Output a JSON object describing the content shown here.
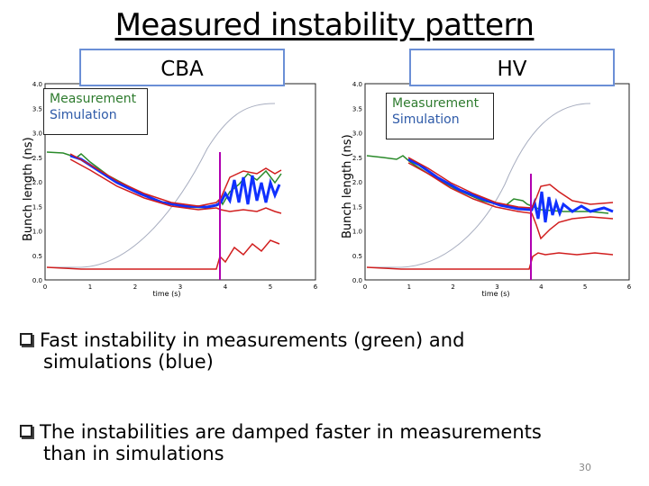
{
  "slide": {
    "title": "Measured instability pattern",
    "page_number": "30"
  },
  "panels": [
    {
      "tag": "CBA",
      "ylabel": "Bunch length (ns)",
      "legend": {
        "measurement": "Measurement",
        "simulation": "Simulation"
      },
      "xlabel": "time (s)",
      "x_ticks": [
        "0",
        "1",
        "2",
        "3",
        "4",
        "5",
        "6"
      ],
      "y_ticks": [
        "0.0",
        "0.5",
        "1.0",
        "1.5",
        "2.0",
        "2.5",
        "3.0",
        "3.5",
        "4.0"
      ]
    },
    {
      "tag": "HV",
      "ylabel": "Bunch length (ns)",
      "legend": {
        "measurement": "Measurement",
        "simulation": "Simulation"
      },
      "xlabel": "time (s)",
      "x_ticks": [
        "0",
        "1",
        "2",
        "3",
        "4",
        "5",
        "6"
      ],
      "y_ticks": [
        "0.0",
        "0.5",
        "1.0",
        "1.5",
        "2.0",
        "2.5",
        "3.0",
        "3.5",
        "4.0"
      ]
    }
  ],
  "bullets": [
    {
      "line1": "Fast instability in measurements (green) and",
      "line2": "simulations (blue)"
    },
    {
      "line1": "The instabilities are damped faster in measurements",
      "line2": "than in simulations"
    }
  ],
  "colors": {
    "measurement": "#2a8a2a",
    "simulation": "#1030ff",
    "envelope": "#d11e1e",
    "marker": "#b000b0",
    "ramp": "#9aa0b0",
    "tag_border": "#6b8fd6"
  }
}
